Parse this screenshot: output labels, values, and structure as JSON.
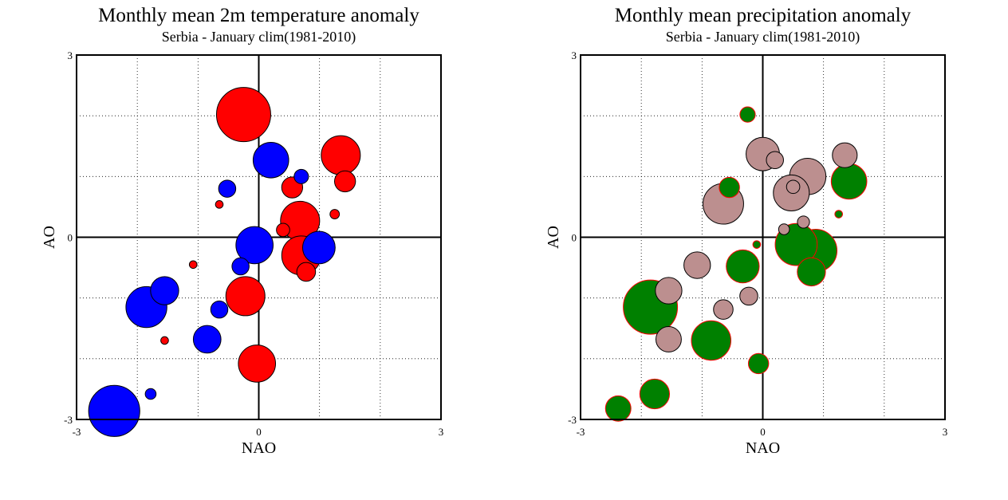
{
  "chart_data": [
    {
      "type": "scatter",
      "title": "Monthly mean 2m temperature anomaly",
      "subtitle": "Serbia - January  clim(1981-2010)",
      "xlabel": "NAO",
      "ylabel": "AO",
      "xlim": [
        -3,
        3
      ],
      "ylim": [
        -3,
        3
      ],
      "xticks": [
        "-3",
        "0",
        "3"
      ],
      "yticks": [
        "-3",
        "0",
        "3"
      ],
      "grid": "dotted",
      "reference_lines": {
        "x": 0,
        "y": 0
      },
      "marker_size_meaning": "bubble area proportional to anomaly magnitude",
      "series": [
        {
          "color": "#ff0000",
          "points": [
            {
              "x": -0.25,
              "y": 2.02,
              "size": 1.0
            },
            {
              "x": 1.35,
              "y": 1.35,
              "size": 0.52
            },
            {
              "x": 1.42,
              "y": 0.92,
              "size": 0.15
            },
            {
              "x": 0.55,
              "y": 0.82,
              "size": 0.15
            },
            {
              "x": 0.68,
              "y": 0.27,
              "size": 0.52
            },
            {
              "x": 0.4,
              "y": 0.12,
              "size": 0.06
            },
            {
              "x": 1.25,
              "y": 0.38,
              "size": 0.03
            },
            {
              "x": -0.65,
              "y": 0.54,
              "size": 0.02
            },
            {
              "x": 0.7,
              "y": -0.3,
              "size": 0.52
            },
            {
              "x": 0.78,
              "y": -0.57,
              "size": 0.12
            },
            {
              "x": -1.08,
              "y": -0.45,
              "size": 0.02
            },
            {
              "x": -0.22,
              "y": -0.97,
              "size": 0.52
            },
            {
              "x": -1.55,
              "y": -1.7,
              "size": 0.02
            },
            {
              "x": -0.03,
              "y": -2.08,
              "size": 0.47
            }
          ]
        },
        {
          "color": "#0000ff",
          "points": [
            {
              "x": 0.2,
              "y": 1.27,
              "size": 0.43
            },
            {
              "x": 0.7,
              "y": 1.0,
              "size": 0.07
            },
            {
              "x": -0.52,
              "y": 0.8,
              "size": 0.1
            },
            {
              "x": -0.07,
              "y": -0.13,
              "size": 0.47
            },
            {
              "x": 0.99,
              "y": -0.17,
              "size": 0.36
            },
            {
              "x": -0.3,
              "y": -0.48,
              "size": 0.1
            },
            {
              "x": -1.55,
              "y": -0.88,
              "size": 0.27
            },
            {
              "x": -1.85,
              "y": -1.15,
              "size": 0.57
            },
            {
              "x": -0.65,
              "y": -1.19,
              "size": 0.1
            },
            {
              "x": -0.85,
              "y": -1.68,
              "size": 0.26
            },
            {
              "x": -1.78,
              "y": -2.58,
              "size": 0.04
            },
            {
              "x": -2.38,
              "y": -2.86,
              "size": 0.89
            }
          ]
        }
      ]
    },
    {
      "type": "scatter",
      "title": "Monthly mean precipitation anomaly",
      "subtitle": "Serbia - January  clim(1981-2010)",
      "xlabel": "NAO",
      "ylabel": "AO",
      "xlim": [
        -3,
        3
      ],
      "ylim": [
        -3,
        3
      ],
      "xticks": [
        "-3",
        "0",
        "3"
      ],
      "yticks": [
        "-3",
        "0",
        "3"
      ],
      "grid": "dotted",
      "reference_lines": {
        "x": 0,
        "y": 0
      },
      "marker_size_meaning": "bubble area proportional to anomaly magnitude",
      "series": [
        {
          "color": "#bc8f8f",
          "stroke": "#000000",
          "points": [
            {
              "x": -0.65,
              "y": 0.55,
              "size": 0.56
            },
            {
              "x": 0.0,
              "y": 1.37,
              "size": 0.38
            },
            {
              "x": 0.74,
              "y": 1.0,
              "size": 0.45
            },
            {
              "x": 0.47,
              "y": 0.73,
              "size": 0.44
            },
            {
              "x": 1.35,
              "y": 1.35,
              "size": 0.21
            },
            {
              "x": 0.2,
              "y": 1.27,
              "size": 0.1
            },
            {
              "x": 0.5,
              "y": 0.83,
              "size": 0.06
            },
            {
              "x": 0.67,
              "y": 0.25,
              "size": 0.05
            },
            {
              "x": 0.35,
              "y": 0.13,
              "size": 0.04
            },
            {
              "x": -1.08,
              "y": -0.46,
              "size": 0.24
            },
            {
              "x": -1.55,
              "y": -0.88,
              "size": 0.24
            },
            {
              "x": -1.55,
              "y": -1.68,
              "size": 0.22
            },
            {
              "x": -0.65,
              "y": -1.19,
              "size": 0.13
            },
            {
              "x": -0.23,
              "y": -0.97,
              "size": 0.11
            }
          ]
        },
        {
          "color": "#008000",
          "stroke": "#ff0000",
          "points": [
            {
              "x": -0.25,
              "y": 2.02,
              "size": 0.08
            },
            {
              "x": 1.42,
              "y": 0.92,
              "size": 0.43
            },
            {
              "x": -0.55,
              "y": 0.82,
              "size": 0.14
            },
            {
              "x": 0.55,
              "y": -0.12,
              "size": 0.6
            },
            {
              "x": 0.87,
              "y": -0.22,
              "size": 0.62
            },
            {
              "x": 0.8,
              "y": -0.57,
              "size": 0.27
            },
            {
              "x": -0.33,
              "y": -0.48,
              "size": 0.37
            },
            {
              "x": -1.85,
              "y": -1.15,
              "size": 1.0
            },
            {
              "x": -0.85,
              "y": -1.7,
              "size": 0.53
            },
            {
              "x": -0.07,
              "y": -2.08,
              "size": 0.14
            },
            {
              "x": -1.78,
              "y": -2.58,
              "size": 0.3
            },
            {
              "x": -2.38,
              "y": -2.82,
              "size": 0.22
            },
            {
              "x": -0.1,
              "y": -0.12,
              "size": 0.02
            },
            {
              "x": 1.25,
              "y": 0.38,
              "size": 0.02
            }
          ]
        }
      ]
    }
  ]
}
